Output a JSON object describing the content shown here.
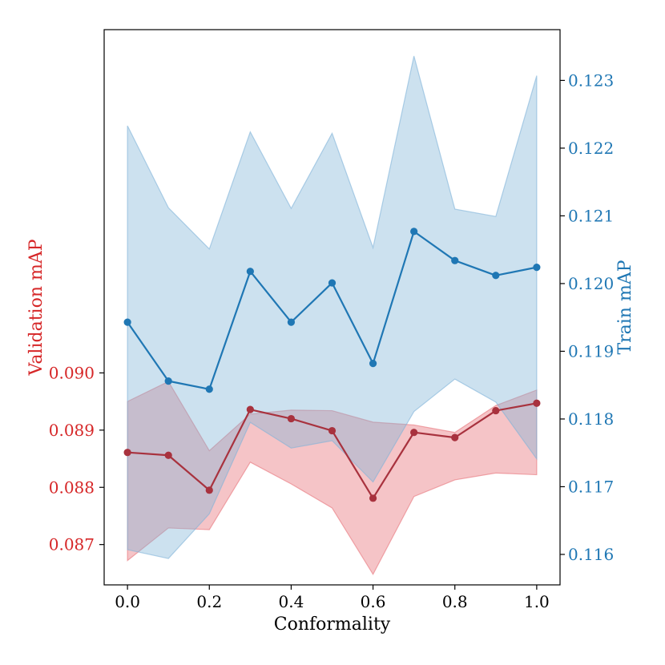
{
  "chart_data": {
    "type": "line",
    "xlabel": "Conformality",
    "x": [
      0.0,
      0.1,
      0.2,
      0.3,
      0.4,
      0.5,
      0.6,
      0.7,
      0.8,
      0.9,
      1.0
    ],
    "xlim": [
      -0.057,
      1.057
    ],
    "xticks": [
      0.0,
      0.2,
      0.4,
      0.6,
      0.8,
      1.0
    ],
    "xtick_labels": [
      "0.0",
      "0.2",
      "0.4",
      "0.6",
      "0.8",
      "1.0"
    ],
    "left_axis": {
      "label": "Validation mAP",
      "ylim": [
        0.086295,
        0.096
      ],
      "ticks": [
        0.087,
        0.088,
        0.089,
        0.09
      ],
      "tick_labels": [
        "0.087",
        "0.088",
        "0.089",
        "0.090"
      ],
      "color": "#d62728"
    },
    "right_axis": {
      "label": "Train mAP",
      "ylim": [
        0.11555,
        0.12375
      ],
      "ticks": [
        0.116,
        0.117,
        0.118,
        0.119,
        0.12,
        0.121,
        0.122,
        0.123
      ],
      "tick_labels": [
        "0.116",
        "0.117",
        "0.118",
        "0.119",
        "0.120",
        "0.121",
        "0.122",
        "0.123"
      ],
      "color": "#1f77b4"
    },
    "series": [
      {
        "name": "Validation mAP",
        "axis": "left",
        "line_color": "#a8323e",
        "fill_color": "#e8737a",
        "values": [
          0.08861,
          0.08856,
          0.08795,
          0.08936,
          0.0892,
          0.08899,
          0.08781,
          0.08896,
          0.08887,
          0.08934,
          0.08947
        ],
        "upper": [
          0.0895,
          0.08985,
          0.08864,
          0.08928,
          0.08935,
          0.08934,
          0.08914,
          0.08909,
          0.08896,
          0.08943,
          0.0897
        ],
        "lower": [
          0.08672,
          0.08729,
          0.08726,
          0.08844,
          0.08806,
          0.08764,
          0.08648,
          0.08784,
          0.08813,
          0.08825,
          0.08822
        ]
      },
      {
        "name": "Train mAP",
        "axis": "right",
        "line_color": "#1f77b4",
        "fill_color": "#7fb3d8",
        "values": [
          0.11943,
          0.11856,
          0.11844,
          0.12018,
          0.11943,
          0.12001,
          0.11882,
          0.12077,
          0.12034,
          0.12012,
          0.12024
        ],
        "upper": [
          0.12233,
          0.12112,
          0.12051,
          0.12224,
          0.12111,
          0.12222,
          0.12053,
          0.12336,
          0.1211,
          0.12099,
          0.12307
        ],
        "lower": [
          0.11607,
          0.11594,
          0.1166,
          0.11795,
          0.11757,
          0.11768,
          0.11707,
          0.11811,
          0.11859,
          0.11825,
          0.11741
        ]
      }
    ]
  }
}
